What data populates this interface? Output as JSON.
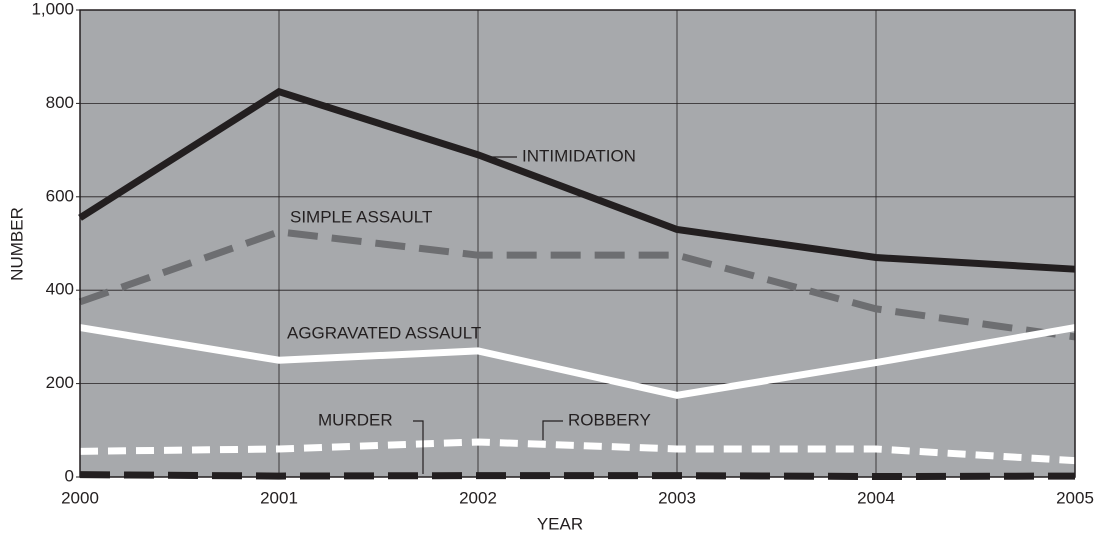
{
  "chart_data": {
    "type": "line",
    "x_label": "YEAR",
    "y_label": "NUMBER",
    "x": [
      2000,
      2001,
      2002,
      2003,
      2004,
      2005
    ],
    "xlim": [
      2000,
      2005
    ],
    "xticks": [
      2000,
      2001,
      2002,
      2003,
      2004,
      2005
    ],
    "ylim": [
      0,
      1000
    ],
    "yticks": [
      0,
      200,
      400,
      600,
      800,
      {
        "value": 1000,
        "label": "1,000"
      }
    ],
    "grid": true,
    "series": [
      {
        "name": "INTIMIDATION",
        "color": "#231f20",
        "style": "solid",
        "values": [
          555,
          825,
          690,
          530,
          470,
          445
        ]
      },
      {
        "name": "SIMPLE ASSAULT",
        "color": "#6d6e71",
        "style": "dashed",
        "values": [
          375,
          525,
          475,
          475,
          360,
          300
        ]
      },
      {
        "name": "AGGRAVATED ASSAULT",
        "color": "#ffffff",
        "style": "solid",
        "values": [
          320,
          250,
          270,
          175,
          245,
          320
        ]
      },
      {
        "name": "MURDER",
        "color": "#231f20",
        "style": "dashed",
        "values": [
          5,
          2,
          3,
          3,
          1,
          2
        ]
      },
      {
        "name": "ROBBERY",
        "color": "#ffffff",
        "style": "dotted",
        "values": [
          55,
          60,
          75,
          60,
          60,
          35
        ]
      }
    ]
  }
}
